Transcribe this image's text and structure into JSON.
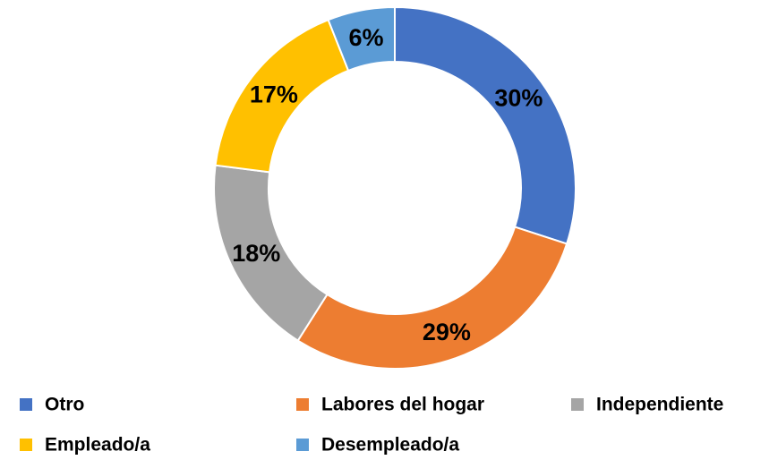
{
  "chart_data": {
    "type": "donut",
    "categories": [
      "Otro",
      "Labores del hogar",
      "Independiente",
      "Empleado/a",
      "Desempleado/a"
    ],
    "values": [
      30,
      29,
      18,
      17,
      6
    ],
    "value_labels": [
      "30%",
      "29%",
      "18%",
      "17%",
      "6%"
    ],
    "colors": [
      "#4472c4",
      "#ed7d31",
      "#a5a5a5",
      "#ffc000",
      "#5b9bd5"
    ],
    "legend": "bottom"
  }
}
